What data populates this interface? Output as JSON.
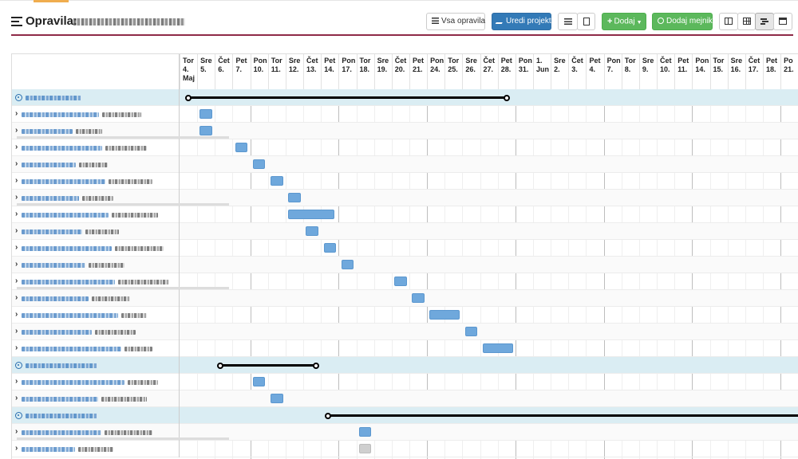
{
  "page": {
    "title": "Opravila:",
    "title_icon": "list-lines-icon"
  },
  "toolbar": {
    "all_tasks_label": "Vsa opravila",
    "edit_project_label": "Uredi projekt",
    "add_label": "Dodaj",
    "add_milestone_label": "Dodaj mejnik",
    "colors": {
      "primary": "#337ab7",
      "success": "#5cb85c",
      "divider": "#8e2a47"
    }
  },
  "timeline": {
    "days": [
      {
        "day": "Tor",
        "date": "4.",
        "extra": "Maj"
      },
      {
        "day": "Sre",
        "date": "5."
      },
      {
        "day": "Čet",
        "date": "6."
      },
      {
        "day": "Pet",
        "date": "7."
      },
      {
        "day": "Pon",
        "date": "10."
      },
      {
        "day": "Tor",
        "date": "11."
      },
      {
        "day": "Sre",
        "date": "12."
      },
      {
        "day": "Čet",
        "date": "13."
      },
      {
        "day": "Pet",
        "date": "14."
      },
      {
        "day": "Pon",
        "date": "17."
      },
      {
        "day": "Tor",
        "date": "18."
      },
      {
        "day": "Sre",
        "date": "19."
      },
      {
        "day": "Čet",
        "date": "20."
      },
      {
        "day": "Pet",
        "date": "21."
      },
      {
        "day": "Pon",
        "date": "24."
      },
      {
        "day": "Tor",
        "date": "25."
      },
      {
        "day": "Sre",
        "date": "26."
      },
      {
        "day": "Čet",
        "date": "27."
      },
      {
        "day": "Pet",
        "date": "28."
      },
      {
        "day": "Pon",
        "date": "31."
      },
      {
        "day": "1.",
        "date": "Jun"
      },
      {
        "day": "Sre",
        "date": "2."
      },
      {
        "day": "Čet",
        "date": "3."
      },
      {
        "day": "Pet",
        "date": "4."
      },
      {
        "day": "Pon",
        "date": "7."
      },
      {
        "day": "Tor",
        "date": "8."
      },
      {
        "day": "Sre",
        "date": "9."
      },
      {
        "day": "Čet",
        "date": "10."
      },
      {
        "day": "Pet",
        "date": "11."
      },
      {
        "day": "Pon",
        "date": "14."
      },
      {
        "day": "Tor",
        "date": "15."
      },
      {
        "day": "Sre",
        "date": "16."
      },
      {
        "day": "Čet",
        "date": "17."
      },
      {
        "day": "Pet",
        "date": "18."
      },
      {
        "day": "Po",
        "date": "21."
      }
    ]
  },
  "rows": [
    {
      "type": "project",
      "span_start_day": 0.5,
      "span_end_day": 18.5,
      "collapse_icon": "collapse-circle-icon"
    },
    {
      "type": "task",
      "bar_start_day": 1.15,
      "bar_days": 0.7
    },
    {
      "type": "task",
      "bar_start_day": 1.15,
      "bar_days": 0.7,
      "underline": true
    },
    {
      "type": "task",
      "bar_start_day": 3.15,
      "bar_days": 0.7
    },
    {
      "type": "task",
      "bar_start_day": 4.15,
      "bar_days": 0.7
    },
    {
      "type": "task",
      "bar_start_day": 5.15,
      "bar_days": 0.7
    },
    {
      "type": "task",
      "bar_start_day": 6.15,
      "bar_days": 0.7,
      "underline": true
    },
    {
      "type": "task",
      "bar_start_day": 6.15,
      "bar_days": 2.6
    },
    {
      "type": "task",
      "bar_start_day": 7.15,
      "bar_days": 0.7
    },
    {
      "type": "task",
      "bar_start_day": 8.15,
      "bar_days": 0.7
    },
    {
      "type": "task",
      "bar_start_day": 9.15,
      "bar_days": 0.7
    },
    {
      "type": "task",
      "bar_start_day": 12.15,
      "bar_days": 0.7,
      "underline": true
    },
    {
      "type": "task",
      "bar_start_day": 13.15,
      "bar_days": 0.7
    },
    {
      "type": "task",
      "bar_start_day": 14.15,
      "bar_days": 1.7
    },
    {
      "type": "task",
      "bar_start_day": 16.15,
      "bar_days": 0.7
    },
    {
      "type": "task",
      "bar_start_day": 17.15,
      "bar_days": 1.7
    },
    {
      "type": "project",
      "span_start_day": 2.3,
      "span_end_day": 7.7,
      "collapse_icon": "collapse-circle-icon"
    },
    {
      "type": "task",
      "bar_start_day": 4.15,
      "bar_days": 0.7
    },
    {
      "type": "task",
      "bar_start_day": 5.15,
      "bar_days": 0.7
    },
    {
      "type": "project",
      "span_start_day": 8.4,
      "span_end_day": 40,
      "collapse_icon": "collapse-circle-icon"
    },
    {
      "type": "task",
      "bar_start_day": 10.15,
      "bar_days": 0.7,
      "underline": true
    },
    {
      "type": "task",
      "bar_start_day": 10.15,
      "bar_days": 0.7,
      "gray": true
    }
  ]
}
